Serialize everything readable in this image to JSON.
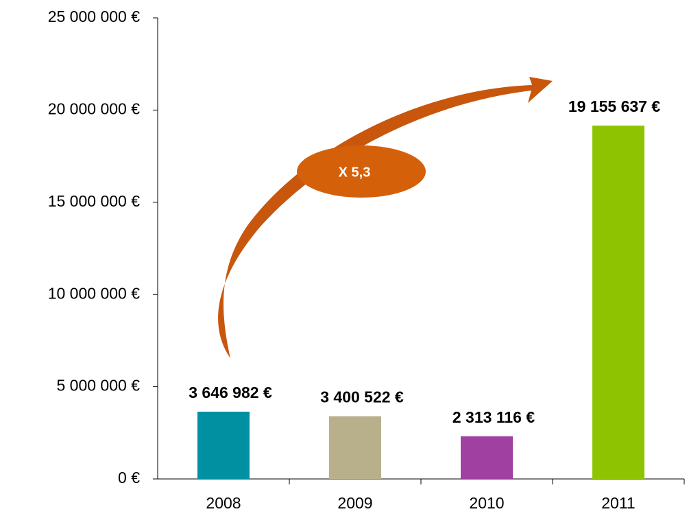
{
  "chart_data": {
    "type": "bar",
    "categories": [
      "2008",
      "2009",
      "2010",
      "2011"
    ],
    "values": [
      3646982,
      3400522,
      2313116,
      19155637
    ],
    "value_labels": [
      "3 646 982 €",
      "3 400 522 €",
      "2 313 116 €",
      "19 155 637 €"
    ],
    "colors": [
      "#0090a2",
      "#b7b08a",
      "#a040a0",
      "#8dc300"
    ],
    "ylim": [
      0,
      25000000
    ],
    "yticks": [
      {
        "value": 0,
        "label": "0 €"
      },
      {
        "value": 5000000,
        "label": "5 000 000 €"
      },
      {
        "value": 10000000,
        "label": "10 000 000 €"
      },
      {
        "value": 15000000,
        "label": "15 000 000 €"
      },
      {
        "value": 20000000,
        "label": "20 000 000 €"
      },
      {
        "value": 25000000,
        "label": "25 000 000 €"
      }
    ],
    "annotation": "X 5,3",
    "annotation_color": "#d4600a"
  }
}
